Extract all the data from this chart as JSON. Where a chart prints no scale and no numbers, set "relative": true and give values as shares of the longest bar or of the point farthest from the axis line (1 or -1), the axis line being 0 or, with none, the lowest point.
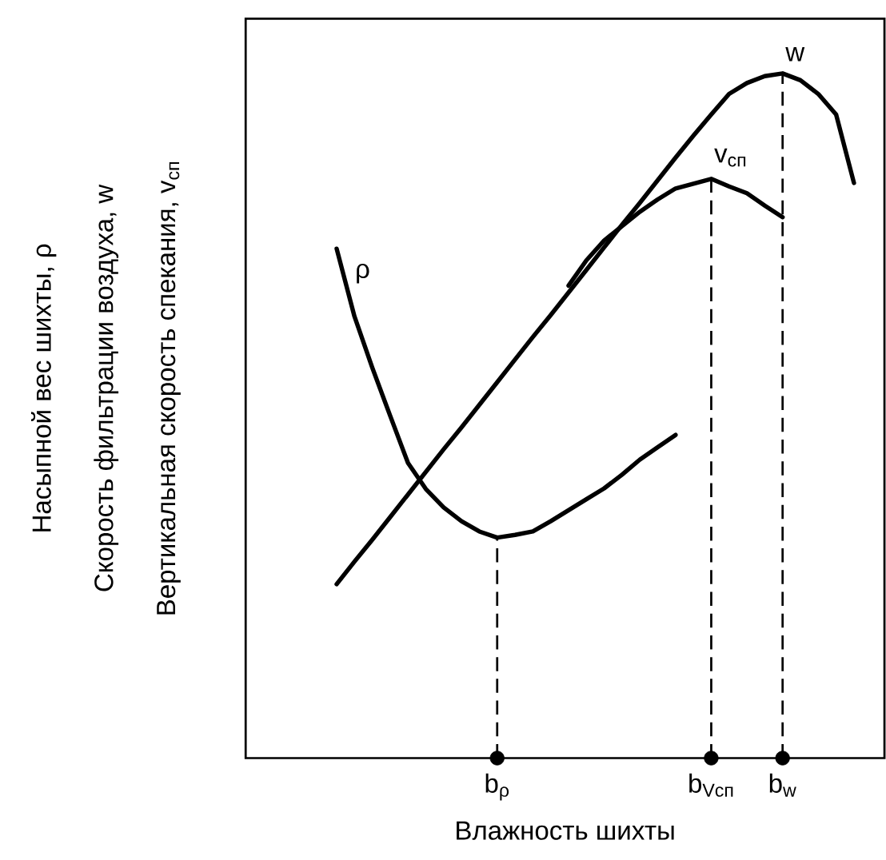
{
  "chart_data": {
    "type": "line",
    "relative": true,
    "xlabel": "Влажность шихты",
    "ylabel": [
      "Насыпной вес шихты, ρ",
      "Скорость фильтрации воздуха, w",
      "Вертикальная скорость спекания, v$_{сп}$"
    ],
    "categories": [
      null,
      null,
      null,
      null,
      null,
      null,
      null,
      null,
      null,
      "b$_{ρ}$",
      null,
      null,
      null,
      null,
      null,
      null,
      null,
      null,
      null,
      null,
      null,
      "b$_{Vсп}$",
      null,
      null,
      null,
      "b$_{w}$",
      null,
      null,
      null,
      null
    ],
    "series": [
      {
        "name": "ρ",
        "color": "#000000",
        "values": [
          0.744,
          0.645,
          0.57,
          0.5,
          0.431,
          0.393,
          0.366,
          0.346,
          0.331,
          0.322,
          0.326,
          0.331,
          0.346,
          0.362,
          0.378,
          0.394,
          0.414,
          0.436,
          0.454,
          0.472,
          null,
          null,
          null,
          null,
          null,
          null,
          null,
          null,
          null,
          null
        ]
      },
      {
        "name": "w",
        "color": "#000000",
        "values": [
          0.254,
          0.287,
          0.319,
          0.352,
          0.385,
          0.418,
          0.451,
          0.483,
          0.516,
          0.549,
          0.582,
          0.615,
          0.647,
          0.68,
          0.713,
          0.746,
          0.779,
          0.811,
          0.844,
          0.877,
          0.909,
          0.94,
          0.97,
          0.986,
          0.996,
          1.0,
          0.99,
          0.97,
          0.94,
          0.84
        ]
      },
      {
        "type": "scatter",
        "color": "#000000",
        "x": [
          "b$_{ρ}$",
          "b$_{Vсп}$",
          "b$_{w}$"
        ],
        "values": [
          0,
          0,
          0
        ]
      },
      {
        "name": "v$_{сп}$",
        "color": "#000000",
        "values": [
          null,
          null,
          null,
          null,
          null,
          null,
          null,
          null,
          null,
          null,
          null,
          null,
          null,
          0.69,
          0.727,
          0.756,
          0.777,
          0.798,
          0.816,
          0.832,
          0.839,
          0.846,
          0.835,
          0.825,
          0.807,
          0.79,
          null,
          null,
          null,
          null
        ]
      }
    ],
    "ref_lines": [
      {
        "axis": "x",
        "value": "b$_{ρ}$",
        "color": "#000000",
        "line_style": "dashed"
      },
      {
        "axis": "x",
        "value": "b$_{Vсп}$",
        "color": "#000000",
        "line_style": "dashed"
      },
      {
        "axis": "x",
        "value": "b$_{w}$",
        "color": "#000000",
        "line_style": "dashed"
      }
    ]
  }
}
